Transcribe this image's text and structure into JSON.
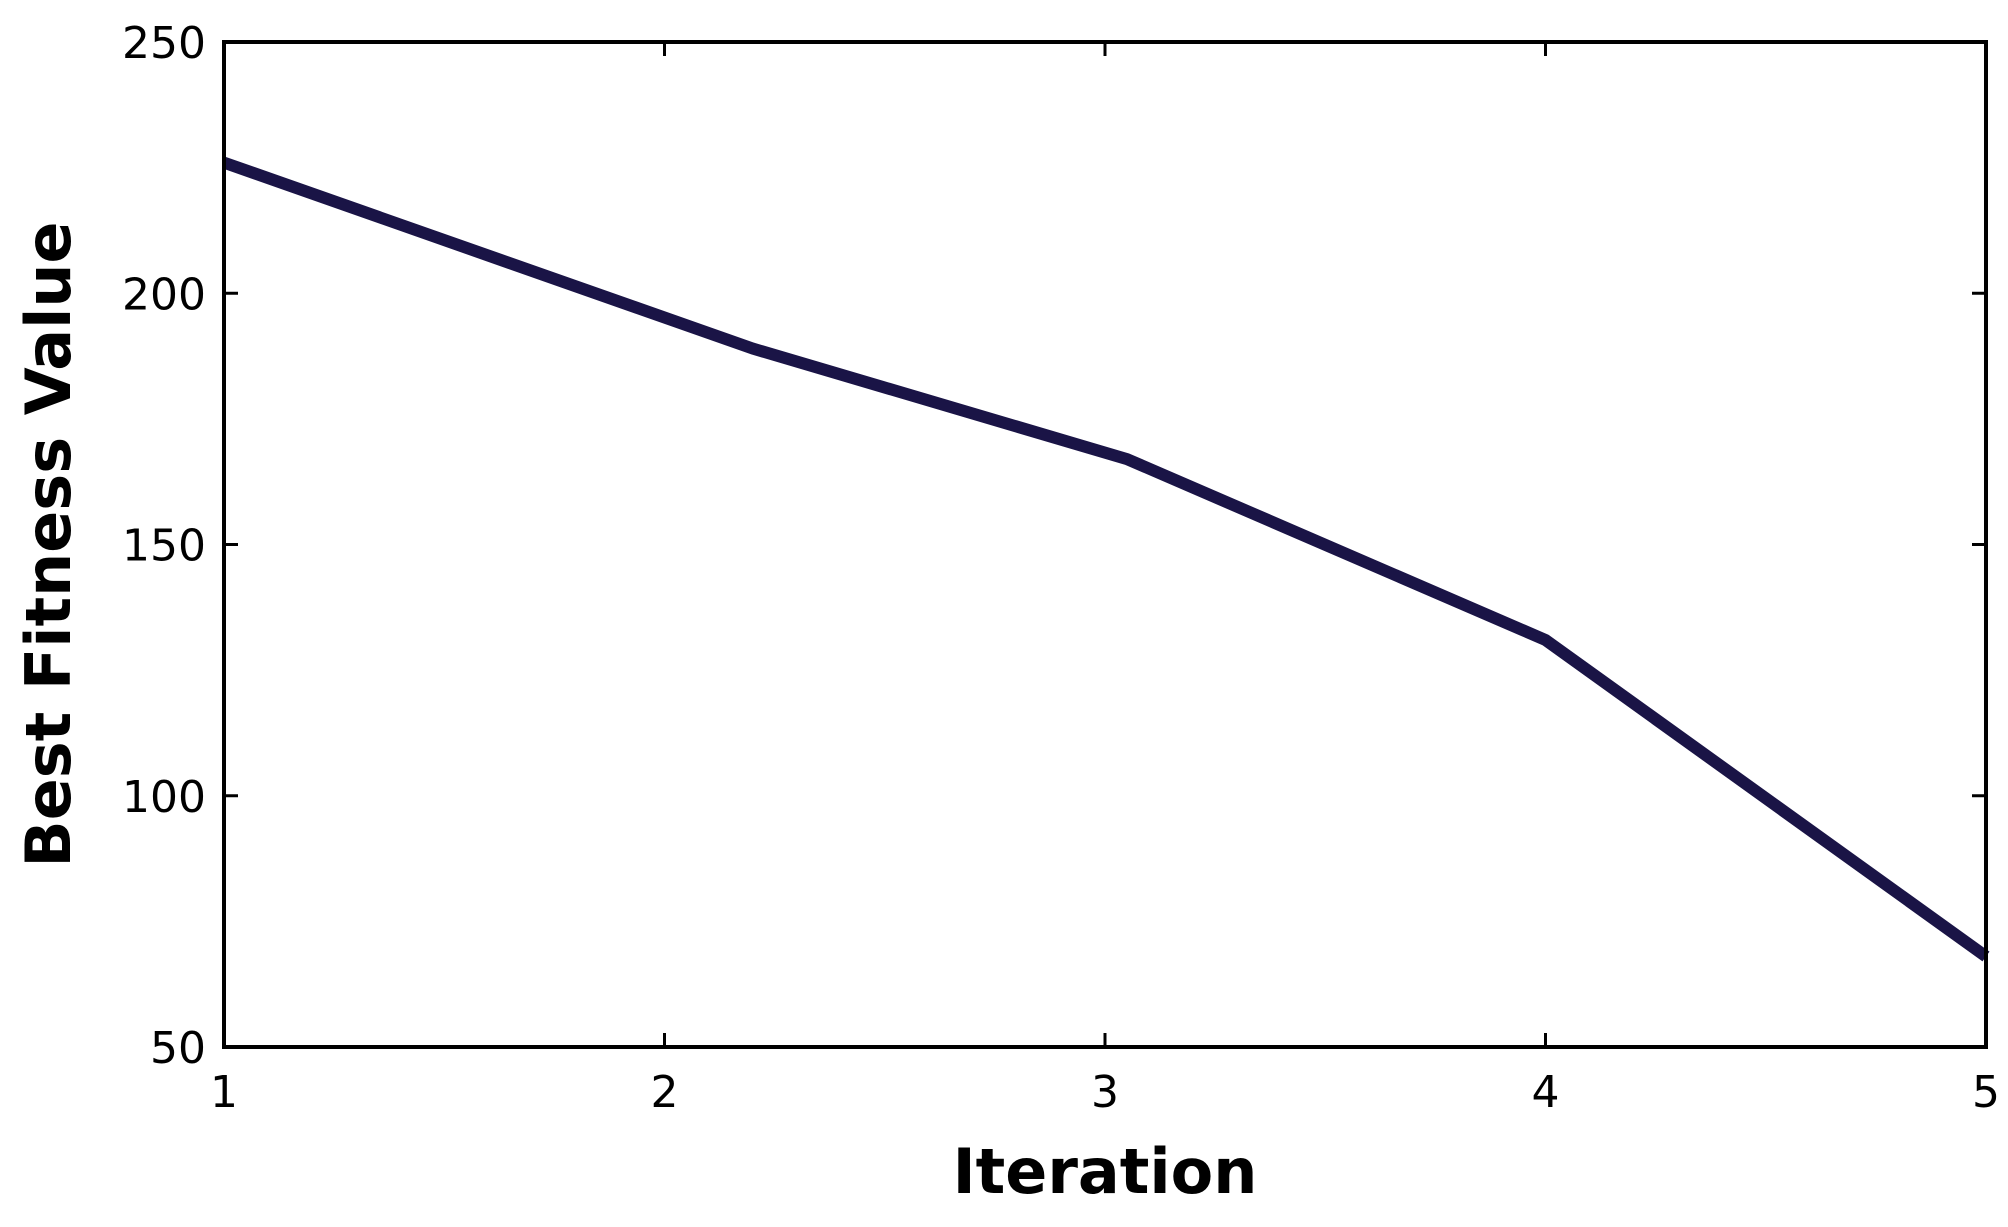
{
  "colors": {
    "line": "#1a1446",
    "axes": "#000000",
    "background": "#ffffff"
  },
  "chart_data": {
    "type": "line",
    "title": "",
    "xlabel": "Iteration",
    "ylabel": "Best Fitness Value",
    "xlim": [
      1,
      5
    ],
    "ylim": [
      50,
      250
    ],
    "xticks": [
      1,
      2,
      3,
      4,
      5
    ],
    "yticks": [
      50,
      100,
      150,
      200,
      250
    ],
    "xtick_labels": [
      "1",
      "2",
      "3",
      "4",
      "5"
    ],
    "ytick_labels": [
      "50",
      "100",
      "150",
      "200",
      "250"
    ],
    "grid": false,
    "legend": "none",
    "series": [
      {
        "x": [
          1,
          2.2,
          3.05,
          4,
          5
        ],
        "values": [
          226,
          189,
          167,
          131,
          68
        ]
      }
    ]
  }
}
